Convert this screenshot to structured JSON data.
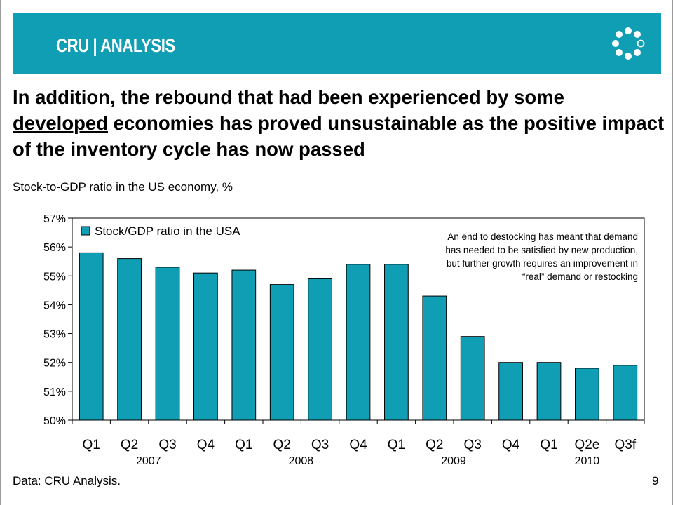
{
  "header": {
    "brand": "CRU | ANALYSIS",
    "brand_color": "#ffffff",
    "bar_color": "#109eb5",
    "logo_icon": "ring-of-dots-logo"
  },
  "headline": {
    "part1": "In addition, the rebound that had been experienced by some ",
    "underlined": "developed",
    "part2": " economies has proved unsustainable as the positive impact of the inventory cycle has now passed"
  },
  "subtitle": "Stock-to-GDP ratio in the US economy, %",
  "footer": {
    "source": "Data: CRU Analysis.",
    "page_number": "9"
  },
  "annotation": "An end to destocking has meant that demand has needed to be satisfied by new production, but further growth requires an improvement in “real” demand or restocking",
  "chart_data": {
    "type": "bar",
    "categories": [
      "Q1",
      "Q2",
      "Q3",
      "Q4",
      "Q1",
      "Q2",
      "Q3",
      "Q4",
      "Q1",
      "Q2",
      "Q3",
      "Q4",
      "Q1",
      "Q2e",
      "Q3f"
    ],
    "year_groups": [
      {
        "label": "2007",
        "count": 4
      },
      {
        "label": "2008",
        "count": 4
      },
      {
        "label": "2009",
        "count": 4
      },
      {
        "label": "2010",
        "count": 3
      }
    ],
    "series": [
      {
        "name": "Stock/GDP ratio in the USA",
        "color": "#109eb5",
        "values": [
          55.8,
          55.6,
          55.3,
          55.1,
          55.2,
          54.7,
          54.9,
          55.4,
          55.4,
          54.3,
          52.9,
          52.0,
          52.0,
          51.8,
          51.9
        ]
      }
    ],
    "y_ticks": [
      "50%",
      "51%",
      "52%",
      "53%",
      "54%",
      "55%",
      "56%",
      "57%"
    ],
    "ylim": [
      50,
      57
    ],
    "legend_position": "top-left",
    "grid": false
  }
}
